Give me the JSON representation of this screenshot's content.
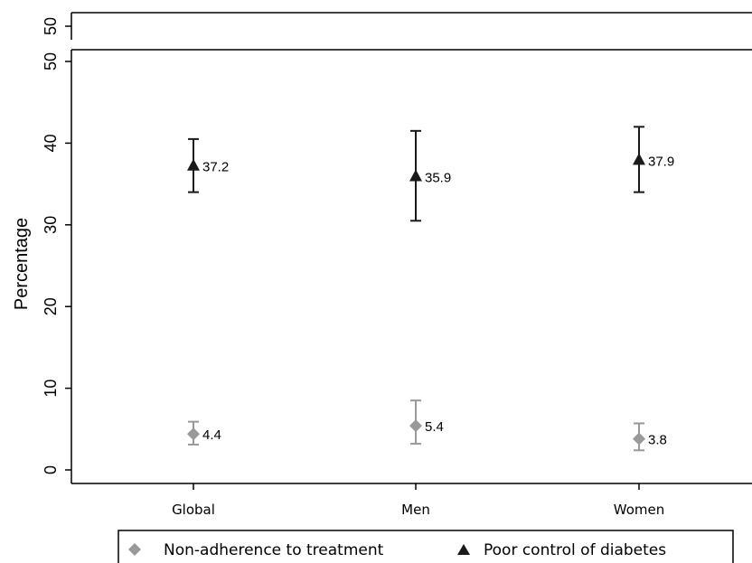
{
  "chart_data": {
    "type": "scatter",
    "ylabel": "Percentage",
    "xlabel": "",
    "ylim": [
      0,
      50
    ],
    "yticks": [
      0,
      10,
      20,
      30,
      40,
      50
    ],
    "categories": [
      "Global",
      "Men",
      "Women"
    ],
    "top_strip_tick": "50",
    "series": [
      {
        "name": "Non-adherence to treatment",
        "marker": "diamond",
        "color": "#999999",
        "values": [
          4.4,
          5.4,
          3.8
        ],
        "labels": [
          "4.4",
          "5.4",
          "3.8"
        ],
        "ci_low": [
          3.1,
          3.2,
          2.4
        ],
        "ci_high": [
          5.9,
          8.5,
          5.7
        ]
      },
      {
        "name": "Poor control of diabetes",
        "marker": "triangle",
        "color": "#1a1a1a",
        "values": [
          37.2,
          35.9,
          37.9
        ],
        "labels": [
          "37.2",
          "35.9",
          "37.9"
        ],
        "ci_low": [
          34.0,
          30.5,
          34.0
        ],
        "ci_high": [
          40.5,
          41.5,
          42.0
        ]
      }
    ],
    "legend_position": "bottom",
    "grid": false
  }
}
